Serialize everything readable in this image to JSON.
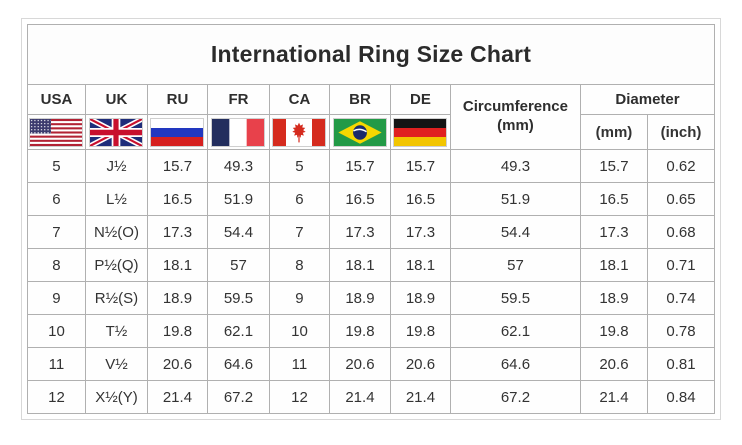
{
  "title": "International Ring Size Chart",
  "header": {
    "codes": [
      "USA",
      "UK",
      "RU",
      "FR",
      "CA",
      "BR",
      "DE"
    ],
    "flags": [
      "usa-flag-icon",
      "uk-flag-icon",
      "russia-flag-icon",
      "france-flag-icon",
      "canada-flag-icon",
      "brazil-flag-icon",
      "germany-flag-icon"
    ],
    "circumference_label": "Circumference",
    "circumference_unit": "(mm)",
    "diameter_label": "Diameter",
    "diameter_units": [
      "(mm)",
      "(inch)"
    ]
  },
  "chart_data": {
    "type": "table",
    "title": "International Ring Size Chart",
    "columns": [
      "USA",
      "UK",
      "RU",
      "FR",
      "CA",
      "BR",
      "DE",
      "Circumference (mm)",
      "Diameter (mm)",
      "Diameter (inch)"
    ],
    "rows": [
      [
        "5",
        "J½",
        "15.7",
        "49.3",
        "5",
        "15.7",
        "15.7",
        "49.3",
        "15.7",
        "0.62"
      ],
      [
        "6",
        "L½",
        "16.5",
        "51.9",
        "6",
        "16.5",
        "16.5",
        "51.9",
        "16.5",
        "0.65"
      ],
      [
        "7",
        "N½(O)",
        "17.3",
        "54.4",
        "7",
        "17.3",
        "17.3",
        "54.4",
        "17.3",
        "0.68"
      ],
      [
        "8",
        "P½(Q)",
        "18.1",
        "57",
        "8",
        "18.1",
        "18.1",
        "57",
        "18.1",
        "0.71"
      ],
      [
        "9",
        "R½(S)",
        "18.9",
        "59.5",
        "9",
        "18.9",
        "18.9",
        "59.5",
        "18.9",
        "0.74"
      ],
      [
        "10",
        "T½",
        "19.8",
        "62.1",
        "10",
        "19.8",
        "19.8",
        "62.1",
        "19.8",
        "0.78"
      ],
      [
        "11",
        "V½",
        "20.6",
        "64.6",
        "11",
        "20.6",
        "20.6",
        "64.6",
        "20.6",
        "0.81"
      ],
      [
        "12",
        "X½(Y)",
        "21.4",
        "67.2",
        "12",
        "21.4",
        "21.4",
        "67.2",
        "21.4",
        "0.84"
      ]
    ]
  },
  "colors": {
    "grid_border": "#b0b0b0",
    "text": "#333333",
    "usa_red": "#B22234",
    "usa_blue": "#3C3B6E",
    "uk_blue": "#1F2D7A",
    "uk_red": "#C8102E",
    "ru_blue": "#2238C0",
    "ru_red": "#D6201F",
    "fr_blue": "#232E5E",
    "fr_red": "#E8414B",
    "ca_red": "#D52B1E",
    "br_green": "#239A47",
    "br_yellow": "#F6D700",
    "br_blue": "#1B2A6B",
    "de_black": "#141414",
    "de_red": "#E02020",
    "de_gold": "#F2C500"
  }
}
